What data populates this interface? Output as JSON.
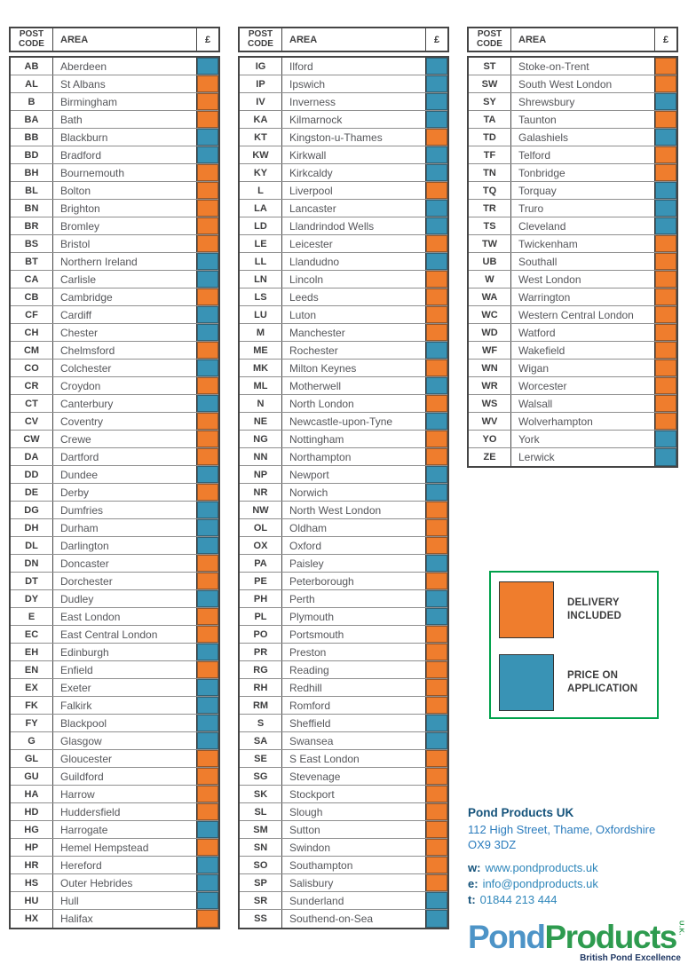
{
  "table_header": {
    "post_code": "POST CODE",
    "area": "AREA",
    "currency": "£"
  },
  "status_colors": {
    "included": "#EF7D2D",
    "poa": "#3993B5"
  },
  "columns": [
    {
      "rows": [
        {
          "code": "AB",
          "area": "Aberdeen",
          "status": "poa"
        },
        {
          "code": "AL",
          "area": "St Albans",
          "status": "included"
        },
        {
          "code": "B",
          "area": "Birmingham",
          "status": "included"
        },
        {
          "code": "BA",
          "area": "Bath",
          "status": "included"
        },
        {
          "code": "BB",
          "area": "Blackburn",
          "status": "poa"
        },
        {
          "code": "BD",
          "area": "Bradford",
          "status": "poa"
        },
        {
          "code": "BH",
          "area": "Bournemouth",
          "status": "included"
        },
        {
          "code": "BL",
          "area": "Bolton",
          "status": "included"
        },
        {
          "code": "BN",
          "area": "Brighton",
          "status": "included"
        },
        {
          "code": "BR",
          "area": "Bromley",
          "status": "included"
        },
        {
          "code": "BS",
          "area": "Bristol",
          "status": "included"
        },
        {
          "code": "BT",
          "area": "Northern Ireland",
          "status": "poa"
        },
        {
          "code": "CA",
          "area": "Carlisle",
          "status": "poa"
        },
        {
          "code": "CB",
          "area": "Cambridge",
          "status": "included"
        },
        {
          "code": "CF",
          "area": "Cardiff",
          "status": "poa"
        },
        {
          "code": "CH",
          "area": "Chester",
          "status": "poa"
        },
        {
          "code": "CM",
          "area": "Chelmsford",
          "status": "included"
        },
        {
          "code": "CO",
          "area": "Colchester",
          "status": "poa"
        },
        {
          "code": "CR",
          "area": "Croydon",
          "status": "included"
        },
        {
          "code": "CT",
          "area": "Canterbury",
          "status": "poa"
        },
        {
          "code": "CV",
          "area": "Coventry",
          "status": "included"
        },
        {
          "code": "CW",
          "area": "Crewe",
          "status": "included"
        },
        {
          "code": "DA",
          "area": "Dartford",
          "status": "included"
        },
        {
          "code": "DD",
          "area": "Dundee",
          "status": "poa"
        },
        {
          "code": "DE",
          "area": "Derby",
          "status": "included"
        },
        {
          "code": "DG",
          "area": "Dumfries",
          "status": "poa"
        },
        {
          "code": "DH",
          "area": "Durham",
          "status": "poa"
        },
        {
          "code": "DL",
          "area": "Darlington",
          "status": "poa"
        },
        {
          "code": "DN",
          "area": "Doncaster",
          "status": "included"
        },
        {
          "code": "DT",
          "area": "Dorchester",
          "status": "included"
        },
        {
          "code": "DY",
          "area": "Dudley",
          "status": "poa"
        },
        {
          "code": "E",
          "area": "East London",
          "status": "included"
        },
        {
          "code": "EC",
          "area": "East Central London",
          "status": "included"
        },
        {
          "code": "EH",
          "area": "Edinburgh",
          "status": "poa"
        },
        {
          "code": "EN",
          "area": "Enfield",
          "status": "included"
        },
        {
          "code": "EX",
          "area": "Exeter",
          "status": "poa"
        },
        {
          "code": "FK",
          "area": "Falkirk",
          "status": "poa"
        },
        {
          "code": "FY",
          "area": "Blackpool",
          "status": "poa"
        },
        {
          "code": "G",
          "area": "Glasgow",
          "status": "poa"
        },
        {
          "code": "GL",
          "area": "Gloucester",
          "status": "included"
        },
        {
          "code": "GU",
          "area": "Guildford",
          "status": "included"
        },
        {
          "code": "HA",
          "area": "Harrow",
          "status": "included"
        },
        {
          "code": "HD",
          "area": "Huddersfield",
          "status": "included"
        },
        {
          "code": "HG",
          "area": "Harrogate",
          "status": "poa"
        },
        {
          "code": "HP",
          "area": "Hemel Hempstead",
          "status": "included"
        },
        {
          "code": "HR",
          "area": "Hereford",
          "status": "poa"
        },
        {
          "code": "HS",
          "area": "Outer Hebrides",
          "status": "poa"
        },
        {
          "code": "HU",
          "area": "Hull",
          "status": "poa"
        },
        {
          "code": "HX",
          "area": "Halifax",
          "status": "included"
        }
      ]
    },
    {
      "rows": [
        {
          "code": "IG",
          "area": "Ilford",
          "status": "poa"
        },
        {
          "code": "IP",
          "area": "Ipswich",
          "status": "poa"
        },
        {
          "code": "IV",
          "area": "Inverness",
          "status": "poa"
        },
        {
          "code": "KA",
          "area": "Kilmarnock",
          "status": "poa"
        },
        {
          "code": "KT",
          "area": "Kingston-u-Thames",
          "status": "included"
        },
        {
          "code": "KW",
          "area": "Kirkwall",
          "status": "poa"
        },
        {
          "code": "KY",
          "area": "Kirkcaldy",
          "status": "poa"
        },
        {
          "code": "L",
          "area": "Liverpool",
          "status": "included"
        },
        {
          "code": "LA",
          "area": "Lancaster",
          "status": "poa"
        },
        {
          "code": "LD",
          "area": "Llandrindod Wells",
          "status": "poa"
        },
        {
          "code": "LE",
          "area": "Leicester",
          "status": "included"
        },
        {
          "code": "LL",
          "area": "Llandudno",
          "status": "poa"
        },
        {
          "code": "LN",
          "area": "Lincoln",
          "status": "included"
        },
        {
          "code": "LS",
          "area": "Leeds",
          "status": "included"
        },
        {
          "code": "LU",
          "area": "Luton",
          "status": "included"
        },
        {
          "code": "M",
          "area": "Manchester",
          "status": "included"
        },
        {
          "code": "ME",
          "area": "Rochester",
          "status": "poa"
        },
        {
          "code": "MK",
          "area": "Milton Keynes",
          "status": "included"
        },
        {
          "code": "ML",
          "area": "Motherwell",
          "status": "poa"
        },
        {
          "code": "N",
          "area": "North London",
          "status": "included"
        },
        {
          "code": "NE",
          "area": "Newcastle-upon-Tyne",
          "status": "poa"
        },
        {
          "code": "NG",
          "area": "Nottingham",
          "status": "included"
        },
        {
          "code": "NN",
          "area": "Northampton",
          "status": "included"
        },
        {
          "code": "NP",
          "area": "Newport",
          "status": "poa"
        },
        {
          "code": "NR",
          "area": "Norwich",
          "status": "poa"
        },
        {
          "code": "NW",
          "area": "North West London",
          "status": "included"
        },
        {
          "code": "OL",
          "area": "Oldham",
          "status": "included"
        },
        {
          "code": "OX",
          "area": "Oxford",
          "status": "included"
        },
        {
          "code": "PA",
          "area": "Paisley",
          "status": "poa"
        },
        {
          "code": "PE",
          "area": "Peterborough",
          "status": "included"
        },
        {
          "code": "PH",
          "area": "Perth",
          "status": "poa"
        },
        {
          "code": "PL",
          "area": "Plymouth",
          "status": "poa"
        },
        {
          "code": "PO",
          "area": "Portsmouth",
          "status": "included"
        },
        {
          "code": "PR",
          "area": "Preston",
          "status": "included"
        },
        {
          "code": "RG",
          "area": "Reading",
          "status": "included"
        },
        {
          "code": "RH",
          "area": "Redhill",
          "status": "included"
        },
        {
          "code": "RM",
          "area": "Romford",
          "status": "included"
        },
        {
          "code": "S",
          "area": "Sheffield",
          "status": "poa"
        },
        {
          "code": "SA",
          "area": "Swansea",
          "status": "poa"
        },
        {
          "code": "SE",
          "area": "S East London",
          "status": "included"
        },
        {
          "code": "SG",
          "area": "Stevenage",
          "status": "included"
        },
        {
          "code": "SK",
          "area": "Stockport",
          "status": "included"
        },
        {
          "code": "SL",
          "area": "Slough",
          "status": "included"
        },
        {
          "code": "SM",
          "area": "Sutton",
          "status": "included"
        },
        {
          "code": "SN",
          "area": "Swindon",
          "status": "included"
        },
        {
          "code": "SO",
          "area": "Southampton",
          "status": "included"
        },
        {
          "code": "SP",
          "area": "Salisbury",
          "status": "included"
        },
        {
          "code": "SR",
          "area": "Sunderland",
          "status": "poa"
        },
        {
          "code": "SS",
          "area": "Southend-on-Sea",
          "status": "poa"
        }
      ]
    },
    {
      "rows": [
        {
          "code": "ST",
          "area": "Stoke-on-Trent",
          "status": "included"
        },
        {
          "code": "SW",
          "area": "South West London",
          "status": "included"
        },
        {
          "code": "SY",
          "area": "Shrewsbury",
          "status": "poa"
        },
        {
          "code": "TA",
          "area": "Taunton",
          "status": "included"
        },
        {
          "code": "TD",
          "area": "Galashiels",
          "status": "poa"
        },
        {
          "code": "TF",
          "area": "Telford",
          "status": "included"
        },
        {
          "code": "TN",
          "area": "Tonbridge",
          "status": "included"
        },
        {
          "code": "TQ",
          "area": "Torquay",
          "status": "poa"
        },
        {
          "code": "TR",
          "area": "Truro",
          "status": "poa"
        },
        {
          "code": "TS",
          "area": "Cleveland",
          "status": "poa"
        },
        {
          "code": "TW",
          "area": "Twickenham",
          "status": "included"
        },
        {
          "code": "UB",
          "area": "Southall",
          "status": "included"
        },
        {
          "code": "W",
          "area": "West London",
          "status": "included"
        },
        {
          "code": "WA",
          "area": "Warrington",
          "status": "included"
        },
        {
          "code": "WC",
          "area": "Western Central London",
          "status": "included"
        },
        {
          "code": "WD",
          "area": "Watford",
          "status": "included"
        },
        {
          "code": "WF",
          "area": "Wakefield",
          "status": "included"
        },
        {
          "code": "WN",
          "area": "Wigan",
          "status": "included"
        },
        {
          "code": "WR",
          "area": "Worcester",
          "status": "included"
        },
        {
          "code": "WS",
          "area": "Walsall",
          "status": "included"
        },
        {
          "code": "WV",
          "area": "Wolverhampton",
          "status": "included"
        },
        {
          "code": "YO",
          "area": "York",
          "status": "poa"
        },
        {
          "code": "ZE",
          "area": "Lerwick",
          "status": "poa"
        }
      ]
    }
  ],
  "legend": {
    "border_color": "#00A14B",
    "items": [
      {
        "label": "DELIVERY INCLUDED",
        "status": "included",
        "color": "#EF7D2D"
      },
      {
        "label": "PRICE ON APPLICATION",
        "status": "poa",
        "color": "#3993B5"
      }
    ]
  },
  "footer": {
    "company": "Pond Products UK",
    "address_line1": "112 High Street, Thame, Oxfordshire",
    "address_line2": "OX9 3DZ",
    "contacts": [
      {
        "label": "w:",
        "value": "www.pondproducts.uk"
      },
      {
        "label": "e:",
        "value": "info@pondproducts.uk"
      },
      {
        "label": "t:",
        "value": "01844 213 444"
      }
    ],
    "logo": {
      "pond": "Pond",
      "products": "Products",
      "uk": "U.K.",
      "tagline": "British Pond Excellence",
      "pond_color": "#4D94C7",
      "products_color": "#2E9B4F",
      "tagline_color": "#203864"
    }
  }
}
